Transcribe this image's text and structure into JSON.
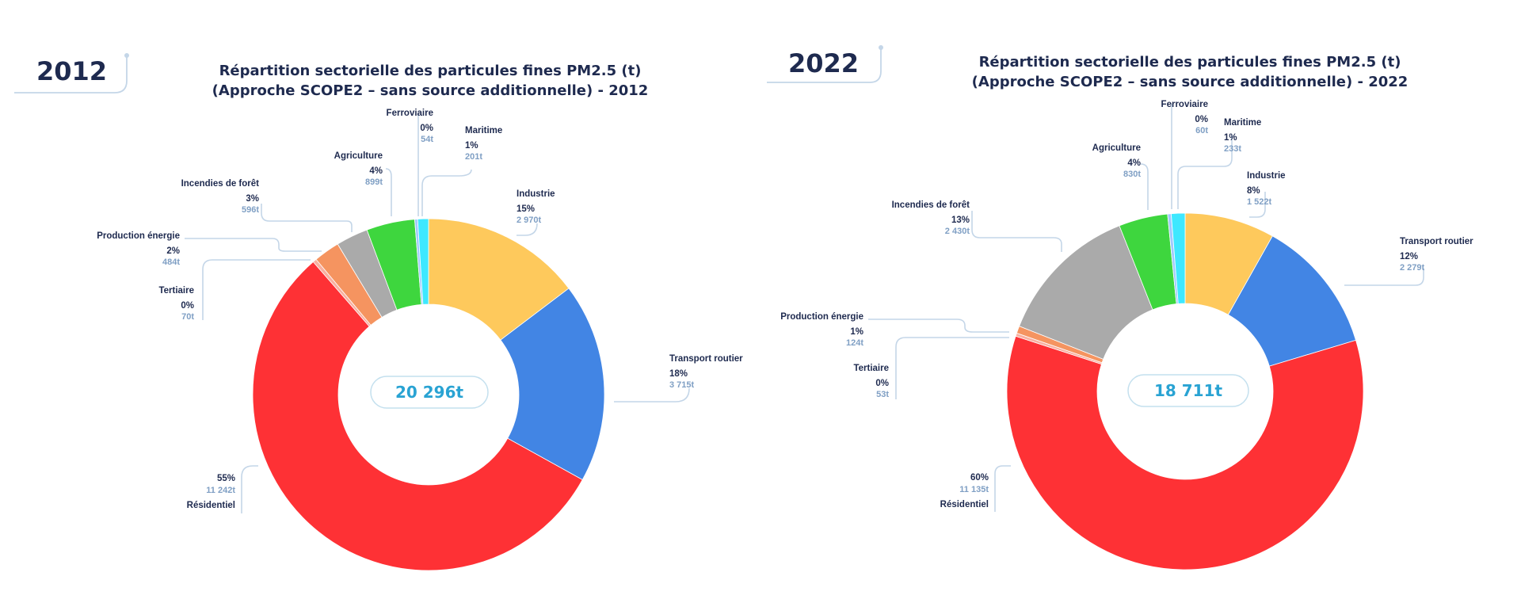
{
  "chart_data": [
    {
      "type": "pie",
      "year_badge": "2012",
      "title_line1": "Répartition sectorielle des particules fines PM2.5 (t)",
      "title_line2": "(Approche SCOPE2 – sans source additionnelle) - 2012",
      "total_label": "20 296t",
      "slices": [
        {
          "name": "Industrie",
          "pct_label": "15%",
          "value_label": "2 970t",
          "value": 2970,
          "color": "#fec95c"
        },
        {
          "name": "Transport routier",
          "pct_label": "18%",
          "value_label": "3 715t",
          "value": 3715,
          "color": "#4285e4"
        },
        {
          "name": "Résidentiel",
          "pct_label": "55%",
          "value_label": "11 242t",
          "value": 11242,
          "color": "#fe3135"
        },
        {
          "name": "Tertiaire",
          "pct_label": "0%",
          "value_label": "70t",
          "value": 70,
          "color": "#f8b0a0"
        },
        {
          "name": "Production énergie",
          "pct_label": "2%",
          "value_label": "484t",
          "value": 484,
          "color": "#f59460"
        },
        {
          "name": "Incendies de forêt",
          "pct_label": "3%",
          "value_label": "596t",
          "value": 596,
          "color": "#aaaaaa"
        },
        {
          "name": "Agriculture",
          "pct_label": "4%",
          "value_label": "899t",
          "value": 899,
          "color": "#3ed63e"
        },
        {
          "name": "Ferroviaire",
          "pct_label": "0%",
          "value_label": "54t",
          "value": 54,
          "color": "#a0c8ff"
        },
        {
          "name": "Maritime",
          "pct_label": "1%",
          "value_label": "201t",
          "value": 201,
          "color": "#3ee8ff"
        }
      ]
    },
    {
      "type": "pie",
      "year_badge": "2022",
      "title_line1": "Répartition sectorielle des particules fines PM2.5 (t)",
      "title_line2": "(Approche SCOPE2 – sans source additionnelle) - 2022",
      "total_label": "18 711t",
      "slices": [
        {
          "name": "Industrie",
          "pct_label": "8%",
          "value_label": "1 522t",
          "value": 1522,
          "color": "#fec95c"
        },
        {
          "name": "Transport routier",
          "pct_label": "12%",
          "value_label": "2 279t",
          "value": 2279,
          "color": "#4285e4"
        },
        {
          "name": "Résidentiel",
          "pct_label": "60%",
          "value_label": "11 135t",
          "value": 11135,
          "color": "#fe3135"
        },
        {
          "name": "Tertiaire",
          "pct_label": "0%",
          "value_label": "53t",
          "value": 53,
          "color": "#f8b0a0"
        },
        {
          "name": "Production énergie",
          "pct_label": "1%",
          "value_label": "124t",
          "value": 124,
          "color": "#f59460"
        },
        {
          "name": "Incendies de forêt",
          "pct_label": "13%",
          "value_label": "2 430t",
          "value": 2430,
          "color": "#aaaaaa"
        },
        {
          "name": "Agriculture",
          "pct_label": "4%",
          "value_label": "830t",
          "value": 830,
          "color": "#3ed63e"
        },
        {
          "name": "Ferroviaire",
          "pct_label": "0%",
          "value_label": "60t",
          "value": 60,
          "color": "#a0c8ff"
        },
        {
          "name": "Maritime",
          "pct_label": "1%",
          "value_label": "233t",
          "value": 233,
          "color": "#3ee8ff"
        }
      ]
    }
  ]
}
